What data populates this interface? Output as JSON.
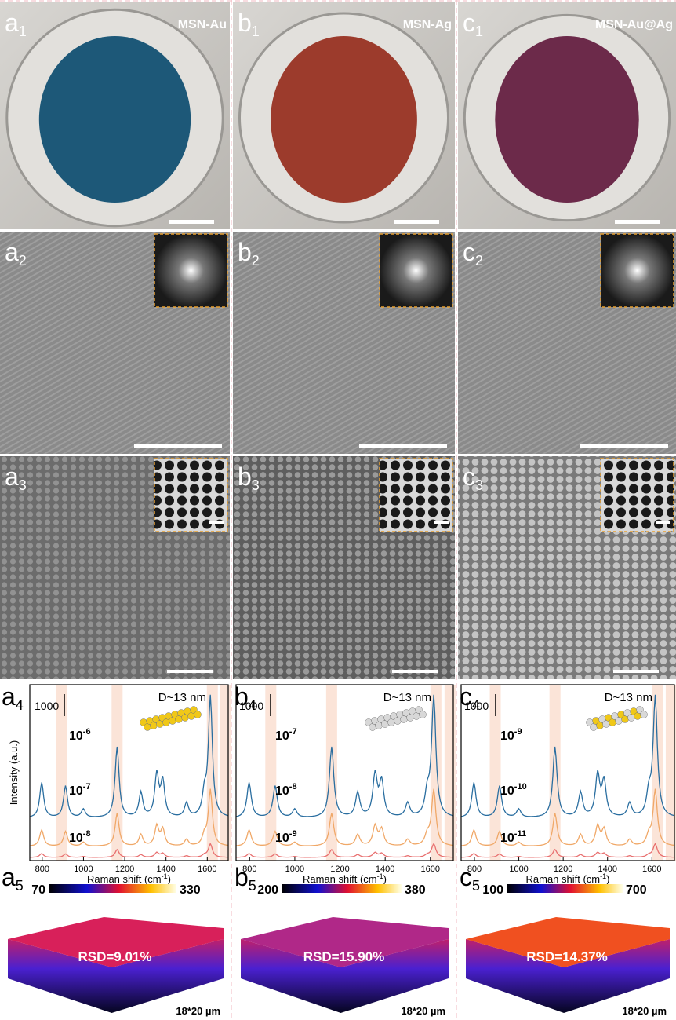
{
  "row1": [
    {
      "letter": "a",
      "sub": "1",
      "label": "MSN-Au"
    },
    {
      "letter": "b",
      "sub": "1",
      "label": "MSN-Ag"
    },
    {
      "letter": "c",
      "sub": "1",
      "label": "MSN-Au@Ag"
    }
  ],
  "row2": [
    {
      "letter": "a",
      "sub": "2"
    },
    {
      "letter": "b",
      "sub": "2"
    },
    {
      "letter": "c",
      "sub": "2"
    }
  ],
  "row3": [
    {
      "letter": "a",
      "sub": "3"
    },
    {
      "letter": "b",
      "sub": "3"
    },
    {
      "letter": "c",
      "sub": "3"
    }
  ],
  "row4": {
    "y_axis_label": "Intensity (a.u.)",
    "panels": [
      {
        "letter": "a",
        "sub": "4",
        "scale": "1000",
        "size_label": "D~13 nm",
        "x_axis_label": "Raman shift (cm",
        "x_axis_sup": "-1",
        "x_axis_end": ")",
        "xticks": [
          "800",
          "1000",
          "1200",
          "1400",
          "1600"
        ],
        "concentrations": [
          {
            "base": "10",
            "exp": "-6"
          },
          {
            "base": "10",
            "exp": "-7"
          },
          {
            "base": "10",
            "exp": "-8"
          }
        ]
      },
      {
        "letter": "b",
        "sub": "4",
        "scale": "1000",
        "size_label": "D~13 nm",
        "x_axis_label": "Raman shift (cm",
        "x_axis_sup": "-1",
        "x_axis_end": ")",
        "xticks": [
          "800",
          "1000",
          "1200",
          "1400",
          "1600"
        ],
        "concentrations": [
          {
            "base": "10",
            "exp": "-7"
          },
          {
            "base": "10",
            "exp": "-8"
          },
          {
            "base": "10",
            "exp": "-9"
          }
        ]
      },
      {
        "letter": "c",
        "sub": "4",
        "scale": "1000",
        "size_label": "D~13 nm",
        "x_axis_label": "Raman shift (cm",
        "x_axis_sup": "-1",
        "x_axis_end": ")",
        "xticks": [
          "800",
          "1000",
          "1200",
          "1400",
          "1600"
        ],
        "concentrations": [
          {
            "base": "10",
            "exp": "-9"
          },
          {
            "base": "10",
            "exp": "-10"
          },
          {
            "base": "10",
            "exp": "-11"
          }
        ]
      }
    ]
  },
  "row5": [
    {
      "letter": "a",
      "sub": "5",
      "cbar_min": "70",
      "cbar_max": "330",
      "rsd": "RSD=9.01%",
      "area": "18*20 µm"
    },
    {
      "letter": "b",
      "sub": "5",
      "cbar_min": "200",
      "cbar_max": "380",
      "rsd": "RSD=15.90%",
      "area": "18*20 µm"
    },
    {
      "letter": "c",
      "sub": "5",
      "cbar_min": "100",
      "cbar_max": "700",
      "rsd": "RSD=14.37%",
      "area": "18*20 µm"
    }
  ]
}
